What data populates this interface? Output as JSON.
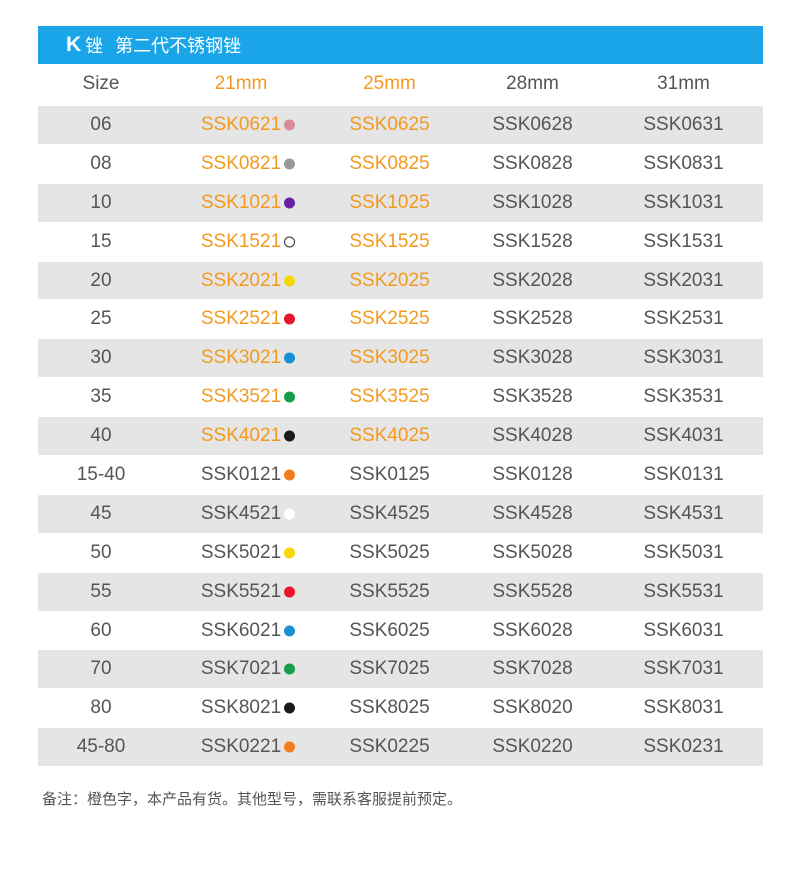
{
  "header": {
    "k_label": "K",
    "file_label": "锉",
    "title": "第二代不锈钢锉",
    "bg_color": "#1aa5e8"
  },
  "columns": {
    "size": "Size",
    "c21": "21mm",
    "c25": "25mm",
    "c28": "28mm",
    "c31": "31mm"
  },
  "accent_orange": "#f39a1e",
  "rows": [
    {
      "size": "06",
      "dot": "#d68a9c",
      "c21": "SSK0621",
      "c25": "SSK0625",
      "c28": "SSK0628",
      "c31": "SSK0631",
      "stock": true
    },
    {
      "size": "08",
      "dot": "#999999",
      "c21": "SSK0821",
      "c25": "SSK0825",
      "c28": "SSK0828",
      "c31": "SSK0831",
      "stock": true
    },
    {
      "size": "10",
      "dot": "#6a1fa0",
      "c21": "SSK1021",
      "c25": "SSK1025",
      "c28": "SSK1028",
      "c31": "SSK1031",
      "stock": true
    },
    {
      "size": "15",
      "dot": "outline",
      "c21": "SSK1521",
      "c25": "SSK1525",
      "c28": "SSK1528",
      "c31": "SSK1531",
      "stock": true
    },
    {
      "size": "20",
      "dot": "#f5d800",
      "c21": "SSK2021",
      "c25": "SSK2025",
      "c28": "SSK2028",
      "c31": "SSK2031",
      "stock": true
    },
    {
      "size": "25",
      "dot": "#e6172a",
      "c21": "SSK2521",
      "c25": "SSK2525",
      "c28": "SSK2528",
      "c31": "SSK2531",
      "stock": true
    },
    {
      "size": "30",
      "dot": "#1a8fd6",
      "c21": "SSK3021",
      "c25": "SSK3025",
      "c28": "SSK3028",
      "c31": "SSK3031",
      "stock": true
    },
    {
      "size": "35",
      "dot": "#14a04a",
      "c21": "SSK3521",
      "c25": "SSK3525",
      "c28": "SSK3528",
      "c31": "SSK3531",
      "stock": true
    },
    {
      "size": "40",
      "dot": "#1a1a1a",
      "c21": "SSK4021",
      "c25": "SSK4025",
      "c28": "SSK4028",
      "c31": "SSK4031",
      "stock": true
    },
    {
      "size": "15-40",
      "dot": "#ef7d1a",
      "c21": "SSK0121",
      "c25": "SSK0125",
      "c28": "SSK0128",
      "c31": "SSK0131",
      "stock": false
    },
    {
      "size": "45",
      "dot": "#ffffff",
      "c21": "SSK4521",
      "c25": "SSK4525",
      "c28": "SSK4528",
      "c31": "SSK4531",
      "stock": false
    },
    {
      "size": "50",
      "dot": "#f5d800",
      "c21": "SSK5021",
      "c25": "SSK5025",
      "c28": "SSK5028",
      "c31": "SSK5031",
      "stock": false
    },
    {
      "size": "55",
      "dot": "#e6172a",
      "c21": "SSK5521",
      "c25": "SSK5525",
      "c28": "SSK5528",
      "c31": "SSK5531",
      "stock": false
    },
    {
      "size": "60",
      "dot": "#1a8fd6",
      "c21": "SSK6021",
      "c25": "SSK6025",
      "c28": "SSK6028",
      "c31": "SSK6031",
      "stock": false
    },
    {
      "size": "70",
      "dot": "#14a04a",
      "c21": "SSK7021",
      "c25": "SSK7025",
      "c28": "SSK7028",
      "c31": "SSK7031",
      "stock": false
    },
    {
      "size": "80",
      "dot": "#1a1a1a",
      "c21": "SSK8021",
      "c25": "SSK8025",
      "c28": "SSK8020",
      "c31": "SSK8031",
      "stock": false
    },
    {
      "size": "45-80",
      "dot": "#ef7d1a",
      "c21": "SSK0221",
      "c25": "SSK0225",
      "c28": "SSK0220",
      "c31": "SSK0231",
      "stock": false
    }
  ],
  "note": "备注：橙色字，本产品有货。其他型号，需联系客服提前预定。"
}
